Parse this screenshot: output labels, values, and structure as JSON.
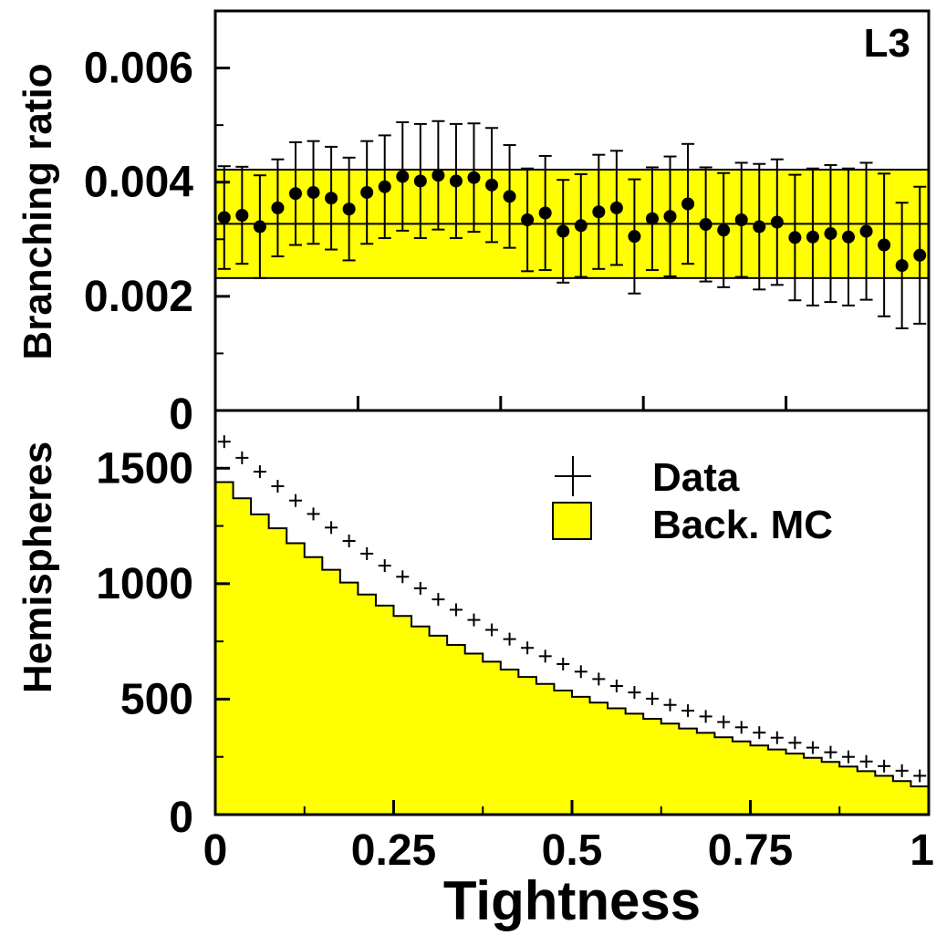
{
  "colors": {
    "fill": "#ffff00",
    "line": "#000000",
    "background": "#ffffff"
  },
  "chart_data": [
    {
      "type": "scatter",
      "panel": "top",
      "ylabel": "Branching ratio",
      "yticks": [
        "0",
        "0.002",
        "0.004",
        "0.006"
      ],
      "ylim": [
        0,
        0.007
      ],
      "xlim": [
        0,
        1
      ],
      "annotation": "L3",
      "band": {
        "center": 0.00327,
        "low": 0.00232,
        "high": 0.00422
      },
      "x": [
        0.0125,
        0.0375,
        0.0625,
        0.0875,
        0.1125,
        0.1375,
        0.1625,
        0.1875,
        0.2125,
        0.2375,
        0.2625,
        0.2875,
        0.3125,
        0.3375,
        0.3625,
        0.3875,
        0.4125,
        0.4375,
        0.4625,
        0.4875,
        0.5125,
        0.5375,
        0.5625,
        0.5875,
        0.6125,
        0.6375,
        0.6625,
        0.6875,
        0.7125,
        0.7375,
        0.7625,
        0.7875,
        0.8125,
        0.8375,
        0.8625,
        0.8875,
        0.9125,
        0.9375,
        0.9625,
        0.9875
      ],
      "values": [
        0.00338,
        0.00342,
        0.00322,
        0.00355,
        0.0038,
        0.00382,
        0.00372,
        0.00353,
        0.00382,
        0.00392,
        0.0041,
        0.00402,
        0.00412,
        0.00402,
        0.00408,
        0.00395,
        0.00375,
        0.00334,
        0.00346,
        0.00314,
        0.00324,
        0.00348,
        0.00355,
        0.00305,
        0.00336,
        0.0034,
        0.00362,
        0.00326,
        0.00316,
        0.00334,
        0.00322,
        0.0033,
        0.00303,
        0.00304,
        0.0031,
        0.00304,
        0.00314,
        0.0029,
        0.00254,
        0.00272
      ],
      "errors": [
        0.0009,
        0.00085,
        0.0009,
        0.00085,
        0.0009,
        0.0009,
        0.0009,
        0.0009,
        0.0009,
        0.0009,
        0.00095,
        0.001,
        0.00095,
        0.001,
        0.00095,
        0.001,
        0.0009,
        0.0009,
        0.001,
        0.0009,
        0.0009,
        0.001,
        0.001,
        0.001,
        0.0009,
        0.00105,
        0.00105,
        0.001,
        0.001,
        0.001,
        0.0011,
        0.0011,
        0.0011,
        0.0012,
        0.0012,
        0.0012,
        0.0012,
        0.00125,
        0.0011,
        0.0012
      ]
    },
    {
      "type": "histogram",
      "panel": "bottom",
      "xlabel": "Tightness",
      "ylabel": "Hemispheres",
      "yticks": [
        "0",
        "500",
        "1000",
        "1500"
      ],
      "xticks": [
        "0",
        "0.25",
        "0.5",
        "0.75",
        "1"
      ],
      "ylim": [
        0,
        1750
      ],
      "xlim": [
        0,
        1
      ],
      "legend": {
        "position": "top-right",
        "entries": [
          "Data",
          "Back. MC"
        ]
      },
      "series": [
        {
          "name": "Back. MC",
          "type": "step",
          "values": [
            1440,
            1370,
            1300,
            1240,
            1175,
            1115,
            1060,
            1005,
            953,
            905,
            860,
            815,
            775,
            735,
            697,
            662,
            628,
            596,
            566,
            537,
            510,
            485,
            460,
            437,
            415,
            394,
            373,
            354,
            335,
            317,
            299,
            282,
            264,
            246,
            228,
            208,
            188,
            168,
            145,
            122
          ]
        },
        {
          "name": "Data",
          "type": "markers",
          "values": [
            1615,
            1545,
            1485,
            1422,
            1360,
            1302,
            1243,
            1185,
            1130,
            1078,
            1030,
            980,
            932,
            887,
            843,
            800,
            760,
            722,
            686,
            652,
            619,
            587,
            557,
            529,
            502,
            475,
            450,
            425,
            401,
            378,
            355,
            333,
            311,
            290,
            270,
            250,
            230,
            210,
            190,
            168
          ]
        }
      ]
    }
  ]
}
